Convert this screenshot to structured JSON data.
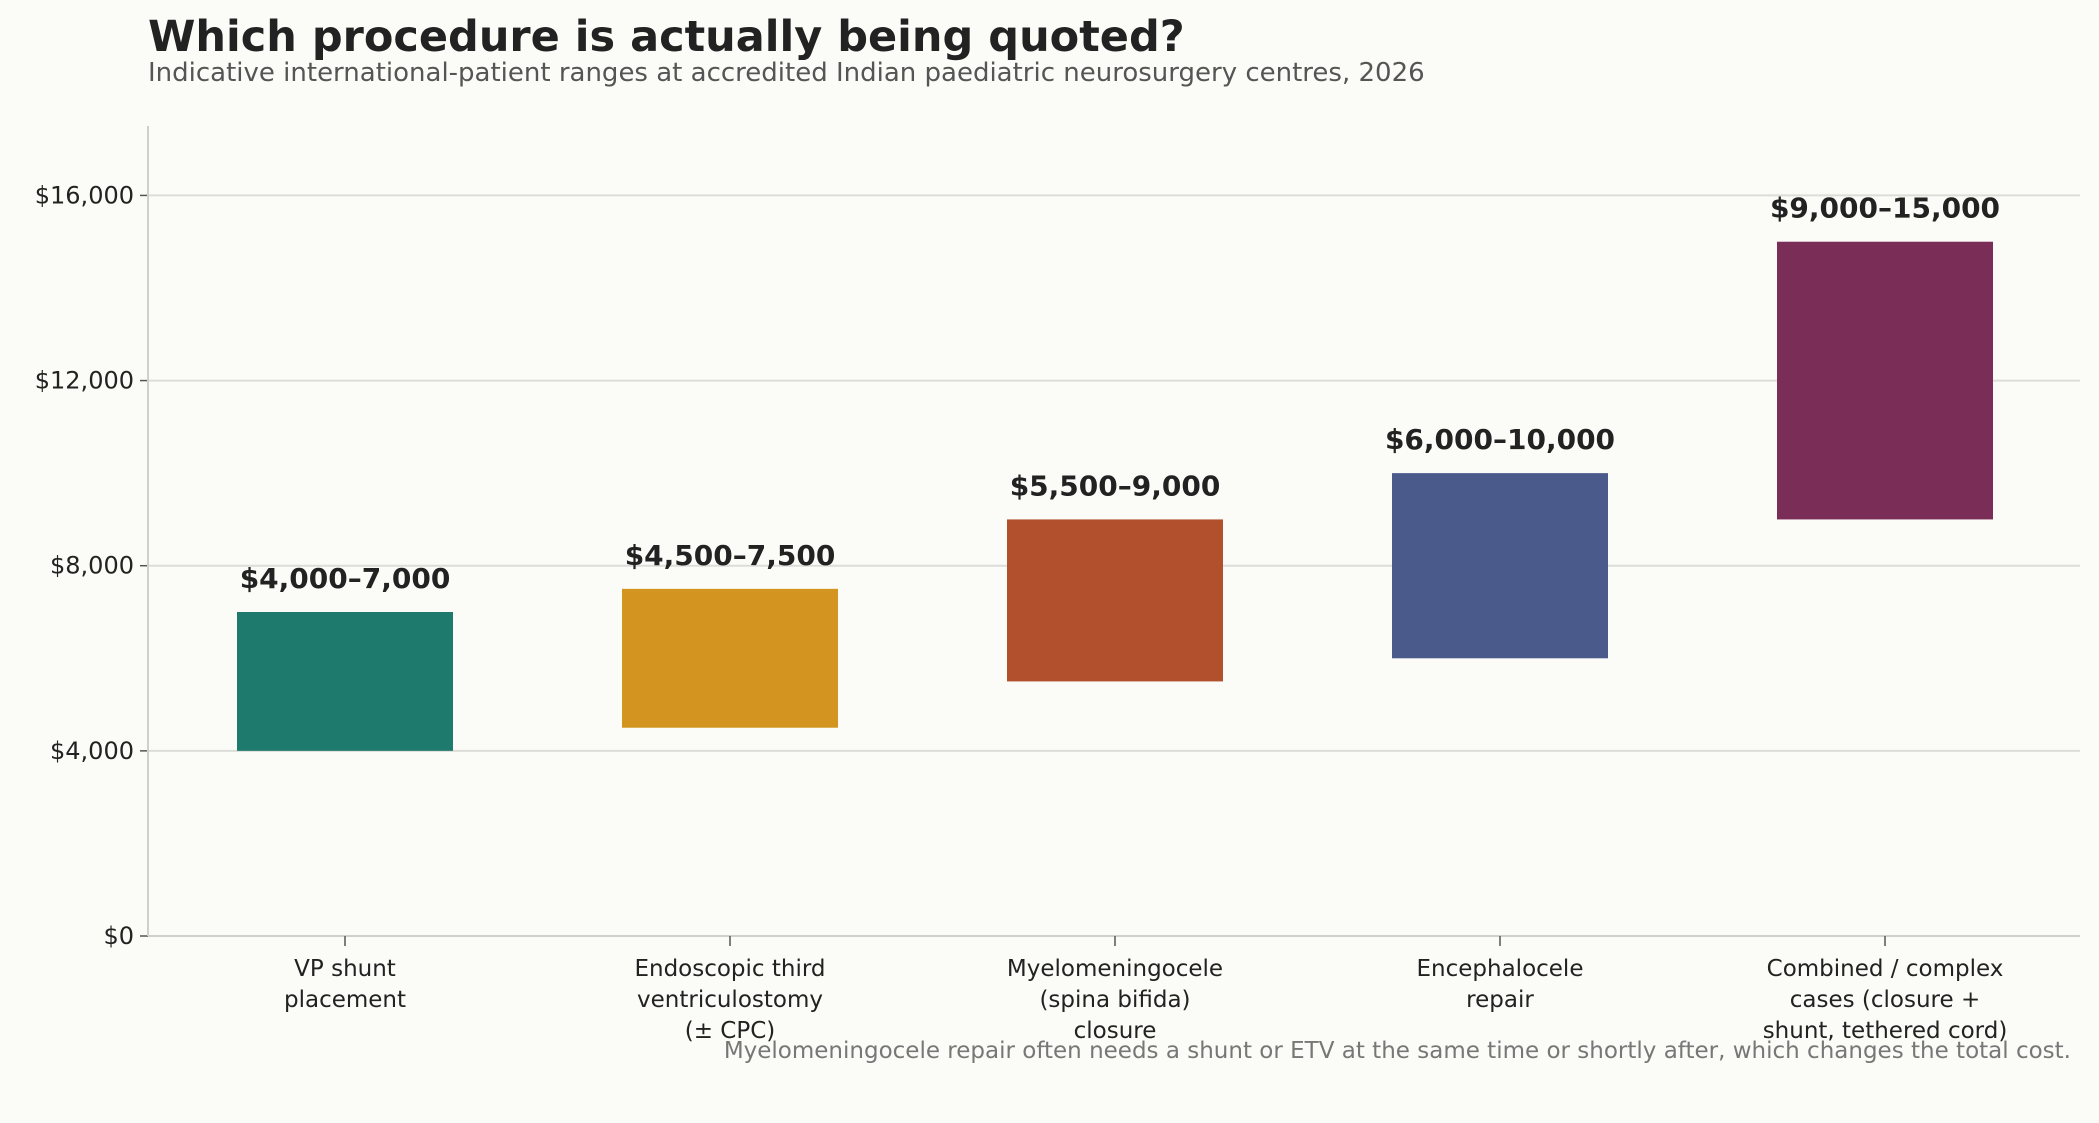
{
  "chart_data": {
    "type": "bar",
    "title": "Which procedure is actually being quoted?",
    "subtitle": "Indicative international-patient ranges at accredited Indian paediatric neurosurgery centres, 2026",
    "note": "Myelomeningocele repair often needs a shunt or ETV at the same time or shortly after, which changes the total cost.",
    "xlabel": "",
    "ylabel": "",
    "ylim": [
      0,
      17500
    ],
    "yticks": [
      0,
      4000,
      8000,
      12000,
      16000
    ],
    "ytick_labels": [
      "$0",
      "$4,000",
      "$8,000",
      "$12,000",
      "$16,000"
    ],
    "grid": "horizontal",
    "categories": [
      [
        "VP shunt",
        "placement"
      ],
      [
        "Endoscopic third",
        "ventriculostomy",
        "(± CPC)"
      ],
      [
        "Myelomeningocele",
        "(spina bifida)",
        "closure"
      ],
      [
        "Encephalocele",
        "repair"
      ],
      [
        "Combined / complex",
        "cases (closure +",
        "shunt, tethered cord)"
      ]
    ],
    "ranges": [
      {
        "low": 4000,
        "high": 7000,
        "label": "$4,000–7,000",
        "color": "#1e7a6d"
      },
      {
        "low": 4500,
        "high": 7500,
        "label": "$4,500–7,500",
        "color": "#d3951f"
      },
      {
        "low": 5500,
        "high": 9000,
        "label": "$5,500–9,000",
        "color": "#b2502d"
      },
      {
        "low": 6000,
        "high": 10000,
        "label": "$6,000–10,000",
        "color": "#4a5a8a"
      },
      {
        "low": 9000,
        "high": 15000,
        "label": "$9,000–15,000",
        "color": "#7a2e57"
      }
    ]
  }
}
